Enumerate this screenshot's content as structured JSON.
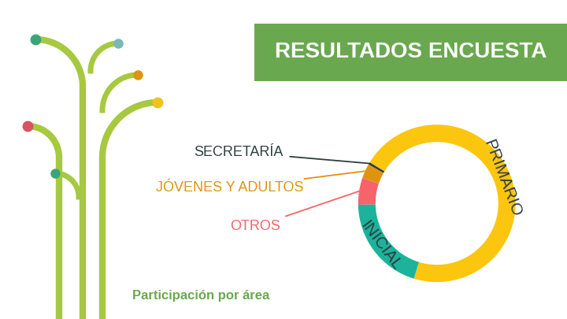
{
  "chart_data": {
    "type": "donut",
    "title": "RESULTADOS ENCUESTA",
    "subtitle": "Participación por área",
    "categories": [
      "PRIMARIO",
      "SECRETARÍA",
      "JÓVENES Y ADULTOS",
      "OTROS",
      "INICIAL"
    ],
    "values": [
      71,
      0.5,
      3,
      5.5,
      20
    ],
    "colors": [
      "#fcc60f",
      "#2f3d40",
      "#e0940d",
      "#f6636a",
      "#1bb39b"
    ],
    "tick_labels": false
  }
}
